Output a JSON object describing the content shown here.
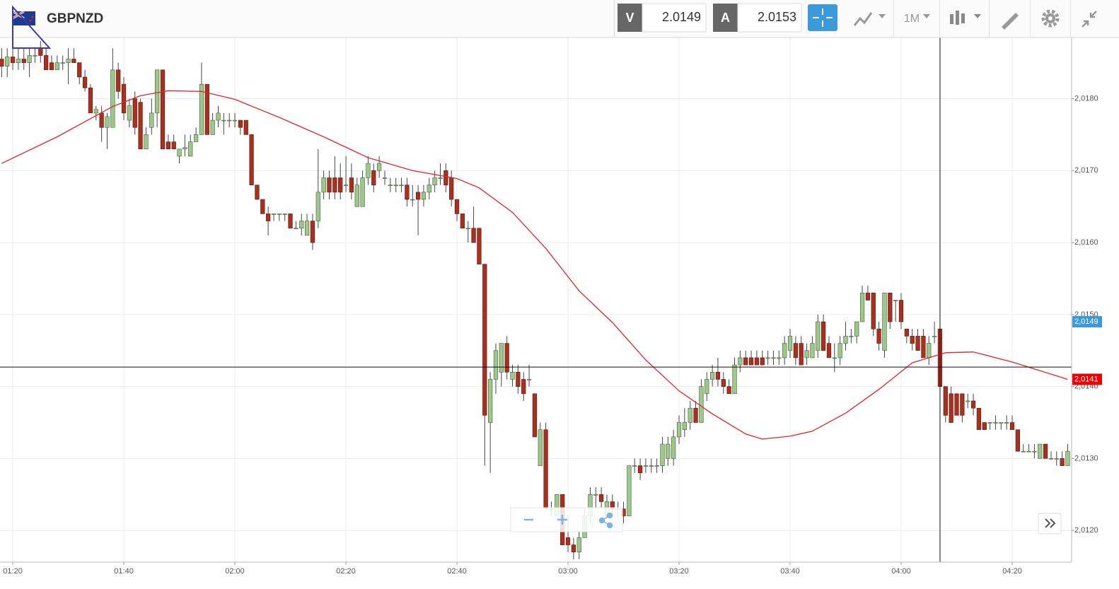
{
  "toolbar": {
    "symbol": "GBPNZD",
    "bid_label": "V",
    "bid": "2.0149",
    "ask_label": "A",
    "ask": "2.0153",
    "timeframe": "1M"
  },
  "chart_data": {
    "type": "candlestick",
    "up_color": "#9cc88a",
    "down_color": "#a8301f",
    "grid": true,
    "ylim": [
      2.01156,
      2.01885
    ],
    "xlim": [
      -0.3,
      192.7
    ],
    "yticks": [
      {
        "value": 2.012,
        "label": "2,0120"
      },
      {
        "value": 2.013,
        "label": "2,0130"
      },
      {
        "value": 2.014,
        "label": "2,0140"
      },
      {
        "value": 2.015,
        "label": "2,0150"
      },
      {
        "value": 2.016,
        "label": "2,0160"
      },
      {
        "value": 2.017,
        "label": "2,0170"
      },
      {
        "value": 2.018,
        "label": "2,0180"
      }
    ],
    "xticks": [
      {
        "value": 2,
        "label": "01:20"
      },
      {
        "value": 22,
        "label": "01:40"
      },
      {
        "value": 42,
        "label": "02:00"
      },
      {
        "value": 62,
        "label": "02:20"
      },
      {
        "value": 82,
        "label": "02:40"
      },
      {
        "value": 102,
        "label": "03:00"
      },
      {
        "value": 122,
        "label": "03:20"
      },
      {
        "value": 142,
        "label": "03:40"
      },
      {
        "value": 162,
        "label": "04:00"
      },
      {
        "value": 182,
        "label": "04:20"
      }
    ],
    "ohlc": [
      [
        2.01855,
        2.0187,
        2.0183,
        2.01845
      ],
      [
        2.01845,
        2.0187,
        2.0183,
        2.01858
      ],
      [
        2.01858,
        2.0187,
        2.0184,
        2.0185
      ],
      [
        2.0185,
        2.0187,
        2.0184,
        2.01855
      ],
      [
        2.01855,
        2.0187,
        2.0184,
        2.0185
      ],
      [
        2.0185,
        2.0187,
        2.0183,
        2.0186
      ],
      [
        2.0186,
        2.0187,
        2.0185,
        2.0186
      ],
      [
        2.0187,
        2.0188,
        2.0185,
        2.0186
      ],
      [
        2.0186,
        2.0187,
        2.0184,
        2.0184
      ],
      [
        2.0185,
        2.0186,
        2.0184,
        2.0184
      ],
      [
        2.0184,
        2.0186,
        2.0184,
        2.0185
      ],
      [
        2.0185,
        2.0186,
        2.0184,
        2.0185
      ],
      [
        2.0185,
        2.0187,
        2.0182,
        2.01855
      ],
      [
        2.01855,
        2.0187,
        2.0185,
        2.0185
      ],
      [
        2.0185,
        2.0185,
        2.0182,
        2.0183
      ],
      [
        2.0183,
        2.0184,
        2.0181,
        2.01815
      ],
      [
        2.01815,
        2.0182,
        2.0178,
        2.0178
      ],
      [
        2.0178,
        2.0179,
        2.0177,
        2.01785
      ],
      [
        2.0178,
        2.0179,
        2.0174,
        2.0176
      ],
      [
        2.0176,
        2.0178,
        2.0173,
        2.01775
      ],
      [
        2.0176,
        2.0187,
        2.0176,
        2.0184
      ],
      [
        2.0184,
        2.0185,
        2.018,
        2.0181
      ],
      [
        2.0182,
        2.0183,
        2.0177,
        2.0178
      ],
      [
        2.0177,
        2.018,
        2.0176,
        2.0179
      ],
      [
        2.018,
        2.0181,
        2.0175,
        2.0176
      ],
      [
        2.01795,
        2.018,
        2.0173,
        2.0173
      ],
      [
        2.0173,
        2.0176,
        2.0173,
        2.0175
      ],
      [
        2.0176,
        2.018,
        2.0175,
        2.0178
      ],
      [
        2.0178,
        2.0184,
        2.0176,
        2.0184
      ],
      [
        2.0184,
        2.0184,
        2.0173,
        2.0173
      ],
      [
        2.0174,
        2.0175,
        2.0173,
        2.0173
      ],
      [
        2.0174,
        2.0175,
        2.0173,
        2.0173
      ],
      [
        2.0172,
        2.0173,
        2.0171,
        2.0173
      ],
      [
        2.0173,
        2.0175,
        2.0172,
        2.01732
      ],
      [
        2.0172,
        2.0175,
        2.0172,
        2.0174
      ],
      [
        2.0174,
        2.0176,
        2.0174,
        2.0175
      ],
      [
        2.0175,
        2.0185,
        2.0175,
        2.0182
      ],
      [
        2.0182,
        2.0182,
        2.0175,
        2.0175
      ],
      [
        2.0175,
        2.0178,
        2.0175,
        2.0177
      ],
      [
        2.0177,
        2.0179,
        2.0176,
        2.0178
      ],
      [
        2.0177,
        2.0178,
        2.0175,
        2.0177
      ],
      [
        2.0177,
        2.0178,
        2.0176,
        2.0177
      ],
      [
        2.0177,
        2.0178,
        2.0176,
        2.0177
      ],
      [
        2.0177,
        2.0177,
        2.0175,
        2.0176
      ],
      [
        2.0177,
        2.0177,
        2.0175,
        2.0175
      ],
      [
        2.0175,
        2.0175,
        2.0168,
        2.0168
      ],
      [
        2.0168,
        2.0168,
        2.0166,
        2.0166
      ],
      [
        2.0166,
        2.0166,
        2.0164,
        2.0164
      ],
      [
        2.0164,
        2.0165,
        2.0161,
        2.0163
      ],
      [
        2.0164,
        2.0164,
        2.0163,
        2.0164
      ],
      [
        2.0164,
        2.0164,
        2.0163,
        2.0164
      ],
      [
        2.0164,
        2.0164,
        2.0163,
        2.0164
      ],
      [
        2.0164,
        2.0164,
        2.0162,
        2.0162
      ],
      [
        2.0162,
        2.0163,
        2.0162,
        2.0162
      ],
      [
        2.0162,
        2.0164,
        2.0161,
        2.0163
      ],
      [
        2.0161,
        2.0164,
        2.0161,
        2.0163
      ],
      [
        2.0163,
        2.0164,
        2.0159,
        2.016
      ],
      [
        2.0163,
        2.0173,
        2.0162,
        2.0167
      ],
      [
        2.0167,
        2.017,
        2.0166,
        2.0169
      ],
      [
        2.0169,
        2.017,
        2.0166,
        2.0167
      ],
      [
        2.0169,
        2.0172,
        2.0166,
        2.0167
      ],
      [
        2.0169,
        2.0171,
        2.0166,
        2.0167
      ],
      [
        2.0168,
        2.0172,
        2.0167,
        2.0168
      ],
      [
        2.0169,
        2.0171,
        2.0166,
        2.0167
      ],
      [
        2.0165,
        2.0169,
        2.0165,
        2.0168
      ],
      [
        2.0165,
        2.017,
        2.0165,
        2.0169
      ],
      [
        2.0169,
        2.0172,
        2.0168,
        2.0171
      ],
      [
        2.017,
        2.0171,
        2.0167,
        2.0168
      ],
      [
        2.017,
        2.0172,
        2.0169,
        2.0171
      ],
      [
        2.0169,
        2.017,
        2.0168,
        2.0169
      ],
      [
        2.0168,
        2.0169,
        2.0167,
        2.0168
      ],
      [
        2.0168,
        2.0169,
        2.0167,
        2.0168
      ],
      [
        2.0168,
        2.0169,
        2.0167,
        2.0168
      ],
      [
        2.0168,
        2.0169,
        2.0165,
        2.0166
      ],
      [
        2.0166,
        2.0168,
        2.0165,
        2.0166
      ],
      [
        2.0167,
        2.0168,
        2.0161,
        2.0166
      ],
      [
        2.0166,
        2.0168,
        2.0165,
        2.0167
      ],
      [
        2.0167,
        2.0169,
        2.0166,
        2.0168
      ],
      [
        2.0168,
        2.017,
        2.0167,
        2.0169
      ],
      [
        2.0169,
        2.0171,
        2.0168,
        2.0169
      ],
      [
        2.017,
        2.0171,
        2.0167,
        2.0168
      ],
      [
        2.0169,
        2.017,
        2.0165,
        2.0166
      ],
      [
        2.0166,
        2.0166,
        2.0163,
        2.0164
      ],
      [
        2.0164,
        2.0164,
        2.0162,
        2.0162
      ],
      [
        2.0162,
        2.0163,
        2.016,
        2.0162
      ],
      [
        2.0162,
        2.0165,
        2.016,
        2.016
      ],
      [
        2.0162,
        2.0162,
        2.0157,
        2.0157
      ],
      [
        2.0157,
        2.0157,
        2.0129,
        2.0136
      ],
      [
        2.0135,
        2.0142,
        2.0128,
        2.0141
      ],
      [
        2.0141,
        2.0146,
        2.0139,
        2.0145
      ],
      [
        2.0142,
        2.0146,
        2.014,
        2.0146
      ],
      [
        2.0146,
        2.0147,
        2.0141,
        2.0142
      ],
      [
        2.0141,
        2.0143,
        2.014,
        2.0142
      ],
      [
        2.0142,
        2.0143,
        2.0139,
        2.014
      ],
      [
        2.0141,
        2.0142,
        2.0138,
        2.0139
      ],
      [
        2.0141,
        2.0143,
        2.014,
        2.0141
      ],
      [
        2.0139,
        2.0139,
        2.0133,
        2.0133
      ],
      [
        2.0129,
        2.0135,
        2.0129,
        2.0134
      ],
      [
        2.0134,
        2.0135,
        2.0123,
        2.0123
      ],
      [
        2.0123,
        2.0124,
        2.0122,
        2.0123
      ],
      [
        2.0122,
        2.0125,
        2.0122,
        2.0125
      ],
      [
        2.0125,
        2.0125,
        2.0118,
        2.0118
      ],
      [
        2.0119,
        2.0122,
        2.0117,
        2.0118
      ],
      [
        2.0118,
        2.0119,
        2.0116,
        2.0117
      ],
      [
        2.0117,
        2.012,
        2.0116,
        2.0119
      ],
      [
        2.0119,
        2.0123,
        2.0119,
        2.0122
      ],
      [
        2.0122,
        2.0126,
        2.0121,
        2.0125
      ],
      [
        2.0125,
        2.0126,
        2.0123,
        2.0125
      ],
      [
        2.0125,
        2.0126,
        2.0123,
        2.0124
      ],
      [
        2.0122,
        2.0125,
        2.0122,
        2.0124
      ],
      [
        2.0124,
        2.0125,
        2.0122,
        2.0123
      ],
      [
        2.0123,
        2.0124,
        2.0122,
        2.0123
      ],
      [
        2.0123,
        2.0124,
        2.0121,
        2.0122
      ],
      [
        2.0122,
        2.0129,
        2.0122,
        2.0129
      ],
      [
        2.0129,
        2.013,
        2.0128,
        2.0129
      ],
      [
        2.0129,
        2.013,
        2.0127,
        2.0128
      ],
      [
        2.0129,
        2.013,
        2.0128,
        2.0129
      ],
      [
        2.0129,
        2.013,
        2.0128,
        2.0129
      ],
      [
        2.0129,
        2.013,
        2.0128,
        2.0129
      ],
      [
        2.0129,
        2.0133,
        2.0128,
        2.0132
      ],
      [
        2.013,
        2.0133,
        2.0129,
        2.0132
      ],
      [
        2.013,
        2.0134,
        2.0129,
        2.0133
      ],
      [
        2.0133,
        2.0136,
        2.0132,
        2.0135
      ],
      [
        2.0134,
        2.0137,
        2.0133,
        2.0135
      ],
      [
        2.0135,
        2.0138,
        2.0134,
        2.0137
      ],
      [
        2.0137,
        2.0138,
        2.0135,
        2.0135
      ],
      [
        2.0135,
        2.0141,
        2.0135,
        2.014
      ],
      [
        2.0139,
        2.0142,
        2.0138,
        2.0141
      ],
      [
        2.0141,
        2.0143,
        2.014,
        2.0142
      ],
      [
        2.0142,
        2.0144,
        2.014,
        2.0141
      ],
      [
        2.0141,
        2.0142,
        2.0139,
        2.014
      ],
      [
        2.014,
        2.0141,
        2.0139,
        2.0139
      ],
      [
        2.0139,
        2.0144,
        2.0139,
        2.0143
      ],
      [
        2.0143,
        2.0145,
        2.0142,
        2.0144
      ],
      [
        2.0144,
        2.0145,
        2.0143,
        2.0143
      ],
      [
        2.0144,
        2.0145,
        2.0143,
        2.0143
      ],
      [
        2.0144,
        2.0145,
        2.0143,
        2.0143
      ],
      [
        2.0144,
        2.0145,
        2.0143,
        2.0143
      ],
      [
        2.0144,
        2.0145,
        2.0143,
        2.0144
      ],
      [
        2.0144,
        2.0145,
        2.0143,
        2.0144
      ],
      [
        2.0144,
        2.0145,
        2.0143,
        2.0144
      ],
      [
        2.0144,
        2.0147,
        2.0143,
        2.0146
      ],
      [
        2.0145,
        2.0148,
        2.0144,
        2.0147
      ],
      [
        2.0146,
        2.0147,
        2.0143,
        2.0144
      ],
      [
        2.0146,
        2.0147,
        2.0143,
        2.0143
      ],
      [
        2.0144,
        2.0146,
        2.0143,
        2.0145
      ],
      [
        2.0144,
        2.0147,
        2.0144,
        2.0146
      ],
      [
        2.0145,
        2.015,
        2.0144,
        2.0149
      ],
      [
        2.0149,
        2.015,
        2.0145,
        2.0145
      ],
      [
        2.0146,
        2.0147,
        2.0144,
        2.0144
      ],
      [
        2.0144,
        2.0146,
        2.0142,
        2.0144
      ],
      [
        2.0144,
        2.0147,
        2.0143,
        2.0146
      ],
      [
        2.0146,
        2.0149,
        2.0145,
        2.0147
      ],
      [
        2.0147,
        2.0148,
        2.0146,
        2.0147
      ],
      [
        2.0147,
        2.0149,
        2.0146,
        2.0149
      ],
      [
        2.0149,
        2.0154,
        2.0149,
        2.0153
      ],
      [
        2.0153,
        2.0154,
        2.0152,
        2.0152
      ],
      [
        2.0153,
        2.0153,
        2.0147,
        2.0148
      ],
      [
        2.0148,
        2.0149,
        2.0145,
        2.0146
      ],
      [
        2.0145,
        2.0153,
        2.0144,
        2.0153
      ],
      [
        2.0153,
        2.0153,
        2.0148,
        2.0149
      ],
      [
        2.0152,
        2.0152,
        2.0149,
        2.0152
      ],
      [
        2.0152,
        2.0153,
        2.0148,
        2.0149
      ],
      [
        2.0148,
        2.0148,
        2.0146,
        2.0147
      ],
      [
        2.0147,
        2.0148,
        2.0145,
        2.0146
      ],
      [
        2.0147,
        2.0148,
        2.0145,
        2.0145
      ],
      [
        2.0147,
        2.0148,
        2.0144,
        2.0144
      ],
      [
        2.0144,
        2.0147,
        2.0143,
        2.0146
      ],
      [
        2.0147,
        2.0149,
        2.0146,
        2.0147
      ],
      [
        2.0148,
        2.0148,
        2.014,
        2.014
      ],
      [
        2.014,
        2.014,
        2.0135,
        2.0136
      ],
      [
        2.0139,
        2.014,
        2.0135,
        2.0135
      ],
      [
        2.0139,
        2.0139,
        2.0136,
        2.0136
      ],
      [
        2.0139,
        2.0139,
        2.0135,
        2.0136
      ],
      [
        2.0138,
        2.0139,
        2.0137,
        2.0138
      ],
      [
        2.0138,
        2.0139,
        2.0136,
        2.0137
      ],
      [
        2.0137,
        2.0137,
        2.0134,
        2.0134
      ],
      [
        2.0135,
        2.0135,
        2.0134,
        2.0134
      ],
      [
        2.0135,
        2.0135,
        2.0134,
        2.0135
      ],
      [
        2.0135,
        2.0136,
        2.0134,
        2.0135
      ],
      [
        2.0135,
        2.0135,
        2.0134,
        2.0135
      ],
      [
        2.0135,
        2.0136,
        2.0134,
        2.0135
      ],
      [
        2.0135,
        2.0136,
        2.0134,
        2.0134
      ],
      [
        2.0134,
        2.0134,
        2.0131,
        2.0131
      ],
      [
        2.0131,
        2.0132,
        2.0131,
        2.0131
      ],
      [
        2.0131,
        2.0132,
        2.0131,
        2.0131
      ],
      [
        2.0131,
        2.0132,
        2.013,
        2.0131
      ],
      [
        2.013,
        2.0132,
        2.013,
        2.0132
      ],
      [
        2.0132,
        2.0132,
        2.013,
        2.013
      ],
      [
        2.013,
        2.0131,
        2.013,
        2.013
      ],
      [
        2.013,
        2.0131,
        2.0129,
        2.013
      ],
      [
        2.013,
        2.0131,
        2.0129,
        2.0129
      ],
      [
        2.0129,
        2.0132,
        2.0129,
        2.0131
      ]
    ],
    "overlays": [
      {
        "color": "#e0252a",
        "x": [
          0,
          10,
          20,
          25,
          30,
          36,
          42,
          50,
          58,
          66,
          74,
          82,
          86,
          92,
          98,
          104,
          110,
          116,
          122,
          128,
          134,
          137,
          142,
          146,
          152,
          158,
          164,
          170,
          175,
          182,
          192
        ],
        "values": [
          2.0171,
          2.01747,
          2.01789,
          2.01804,
          2.01811,
          2.0181,
          2.01799,
          2.01774,
          2.01747,
          2.01718,
          2.017,
          2.01689,
          2.01676,
          2.01642,
          2.01592,
          2.01533,
          2.01489,
          2.01437,
          2.01394,
          2.01362,
          2.01334,
          2.01327,
          2.01331,
          2.01338,
          2.01363,
          2.01396,
          2.01433,
          2.01447,
          2.01448,
          2.01434,
          2.0141
        ]
      }
    ],
    "crosshair": {
      "x": 169,
      "y": 2.01427
    },
    "price_labels": [
      {
        "value": 2.0149,
        "label": "2,0149",
        "color": "#3b9ad9"
      },
      {
        "value": 2.0141,
        "label": "2,0141",
        "color": "#ee0000"
      }
    ]
  }
}
